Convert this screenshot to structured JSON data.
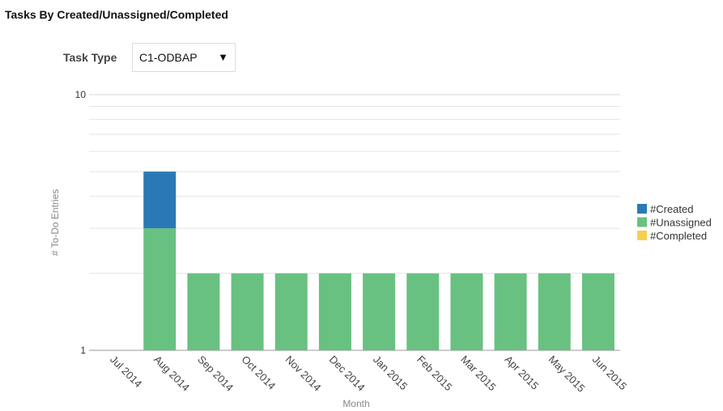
{
  "chart_data": {
    "type": "bar",
    "stacked": true,
    "log_scale": true,
    "title": "Tasks By Created/Unassigned/Completed",
    "filter_label": "Task Type",
    "filter_value": "C1-ODBAP",
    "y_label": "# To-Do Entries",
    "x_label": "Month",
    "categories": [
      "Jul 2014",
      "Aug 2014",
      "Sep 2014",
      "Oct 2014",
      "Nov 2014",
      "Dec 2014",
      "Jan 2015",
      "Feb 2015",
      "Mar 2015",
      "Apr 2015",
      "May 2015",
      "Jun 2015"
    ],
    "series": [
      {
        "name": "#Created",
        "color": "#2a79b5",
        "values": [
          null,
          2,
          null,
          null,
          null,
          null,
          null,
          null,
          null,
          null,
          null,
          null
        ]
      },
      {
        "name": "#Unassigned",
        "color": "#69c181",
        "values": [
          null,
          3,
          2,
          2,
          2,
          2,
          2,
          2,
          2,
          2,
          2,
          2
        ]
      },
      {
        "name": "#Completed",
        "color": "#f6d04d",
        "values": [
          null,
          null,
          null,
          null,
          null,
          null,
          null,
          null,
          null,
          null,
          null,
          null
        ]
      }
    ],
    "ylim": [
      1,
      10
    ],
    "yticks": [
      1,
      10
    ],
    "minor_yticks": [
      2,
      3,
      4,
      5,
      6,
      7,
      8,
      9
    ],
    "grid": true,
    "legend": "right"
  }
}
